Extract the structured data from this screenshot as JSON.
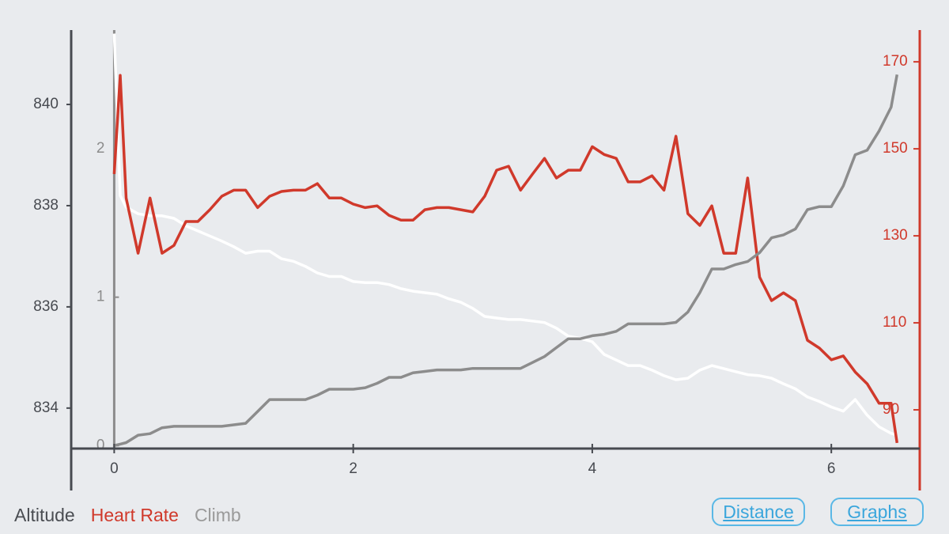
{
  "chart_data": {
    "type": "line",
    "x": [
      0,
      0.05,
      0.1,
      0.2,
      0.3,
      0.4,
      0.5,
      0.6,
      0.7,
      0.8,
      0.9,
      1.0,
      1.1,
      1.2,
      1.3,
      1.4,
      1.5,
      1.6,
      1.7,
      1.8,
      1.9,
      2.0,
      2.1,
      2.2,
      2.3,
      2.4,
      2.5,
      2.6,
      2.7,
      2.8,
      2.9,
      3.0,
      3.1,
      3.2,
      3.3,
      3.4,
      3.5,
      3.6,
      3.7,
      3.8,
      3.9,
      4.0,
      4.1,
      4.2,
      4.3,
      4.4,
      4.5,
      4.6,
      4.7,
      4.8,
      4.9,
      5.0,
      5.1,
      5.2,
      5.3,
      5.4,
      5.5,
      5.6,
      5.7,
      5.8,
      5.9,
      6.0,
      6.1,
      6.2,
      6.3,
      6.4,
      6.5,
      6.55
    ],
    "xlim": [
      -0.36,
      6.72
    ],
    "xticks": [
      0,
      2,
      4,
      6
    ],
    "ylim": [
      833.2,
      841.47
    ],
    "yticks": [
      834,
      836,
      838,
      840
    ],
    "y2lim": [
      81.1,
      177.3
    ],
    "y2ticks": [
      90,
      110,
      130,
      150,
      170
    ],
    "y3lim": [
      -0.02,
      2.8
    ],
    "y3ticks": [
      0,
      1,
      2
    ],
    "series": [
      {
        "name": "Altitude",
        "color": "#ffffff",
        "legend_color": "#4a4d52",
        "axis": "y",
        "values": [
          841.4,
          838.2,
          837.97,
          837.84,
          837.8,
          837.8,
          837.75,
          837.6,
          837.5,
          837.4,
          837.3,
          837.19,
          837.06,
          837.1,
          837.1,
          836.95,
          836.9,
          836.8,
          836.67,
          836.6,
          836.6,
          836.5,
          836.48,
          836.48,
          836.44,
          836.36,
          836.31,
          836.28,
          836.25,
          836.16,
          836.09,
          835.97,
          835.81,
          835.78,
          835.75,
          835.75,
          835.72,
          835.69,
          835.58,
          835.42,
          835.38,
          835.31,
          835.06,
          834.95,
          834.84,
          834.84,
          834.75,
          834.64,
          834.56,
          834.59,
          834.75,
          834.84,
          834.78,
          834.72,
          834.66,
          834.64,
          834.59,
          834.48,
          834.38,
          834.22,
          834.13,
          834.02,
          833.94,
          834.17,
          833.86,
          833.63,
          833.5,
          833.47
        ]
      },
      {
        "name": "Heart Rate",
        "color": "#d0392b",
        "legend_color": "#d0392b",
        "axis": "y2",
        "values": [
          144.2,
          166.9,
          138.7,
          126,
          138.7,
          126,
          127.8,
          133.3,
          133.3,
          136,
          139.1,
          140.5,
          140.5,
          136.5,
          139.1,
          140.2,
          140.5,
          140.5,
          142,
          138.7,
          138.7,
          137.3,
          136.5,
          136.9,
          134.7,
          133.6,
          133.6,
          136,
          136.5,
          136.5,
          136,
          135.5,
          139.1,
          145.1,
          146,
          140.5,
          144.2,
          147.8,
          143.3,
          145.1,
          145.1,
          150.5,
          148.7,
          147.8,
          142.4,
          142.4,
          143.8,
          140.5,
          152.9,
          135.1,
          132.4,
          136.9,
          126,
          126,
          143.3,
          120.5,
          115.1,
          116.9,
          115.1,
          106,
          104.2,
          101.5,
          102.4,
          98.7,
          96,
          91.5,
          91.5,
          82.4
        ]
      },
      {
        "name": "Climb",
        "color": "#8c8c8c",
        "legend_color": "#9a9a9a",
        "axis": "y3",
        "values": [
          0,
          0.01,
          0.02,
          0.07,
          0.08,
          0.12,
          0.13,
          0.13,
          0.13,
          0.13,
          0.13,
          0.14,
          0.15,
          0.23,
          0.31,
          0.31,
          0.31,
          0.31,
          0.34,
          0.38,
          0.38,
          0.38,
          0.39,
          0.42,
          0.46,
          0.46,
          0.49,
          0.5,
          0.51,
          0.51,
          0.51,
          0.52,
          0.52,
          0.52,
          0.52,
          0.52,
          0.56,
          0.6,
          0.66,
          0.72,
          0.72,
          0.74,
          0.75,
          0.77,
          0.82,
          0.82,
          0.82,
          0.82,
          0.83,
          0.9,
          1.03,
          1.19,
          1.19,
          1.22,
          1.24,
          1.3,
          1.4,
          1.42,
          1.46,
          1.59,
          1.61,
          1.61,
          1.75,
          1.96,
          1.99,
          2.12,
          2.28,
          2.5
        ]
      }
    ]
  },
  "buttons": [
    "Distance",
    "Graphs"
  ]
}
